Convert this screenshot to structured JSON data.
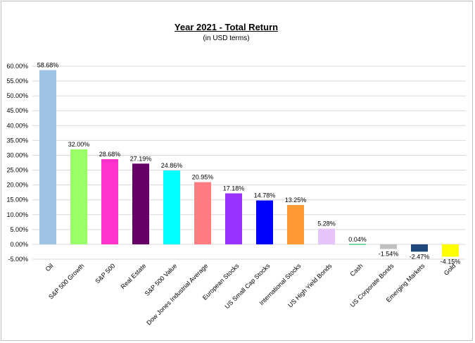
{
  "chart_data": {
    "type": "bar",
    "title": "Year 2021 - Total Return",
    "subtitle": "(in USD terms)",
    "categories": [
      "Oil",
      "S&P 500 Growth",
      "S&P 500",
      "Real Estate",
      "S&P 500 Value",
      "Dow Jones Industrial Average",
      "European Stocks",
      "US Small Cap Stocks",
      "International Stocks",
      "US High Yield Bonds",
      "Cash",
      "US Corporate Bonds",
      "Emerging Markets",
      "Gold"
    ],
    "values": [
      58.68,
      32.0,
      28.68,
      27.19,
      24.86,
      20.95,
      17.18,
      14.78,
      13.25,
      5.28,
      0.04,
      -1.54,
      -2.47,
      -4.15
    ],
    "data_labels": [
      "58.68%",
      "32.00%",
      "28.68%",
      "27.19%",
      "24.86%",
      "20.95%",
      "17.18%",
      "14.78%",
      "13.25%",
      "5.28%",
      "0.04%",
      "-1.54%",
      "-2.47%",
      "-4.15%"
    ],
    "colors": [
      "#9dc3e6",
      "#99ff66",
      "#ff33cc",
      "#660066",
      "#00ffff",
      "#ff7c80",
      "#9933ff",
      "#0000ff",
      "#ff9933",
      "#e6c3f8",
      "#00b050",
      "#bfbfbf",
      "#1f497d",
      "#ffff00"
    ],
    "ylim": [
      -5,
      60
    ],
    "yticks": [
      "60.00%",
      "55.00%",
      "50.00%",
      "45.00%",
      "40.00%",
      "35.00%",
      "30.00%",
      "25.00%",
      "20.00%",
      "15.00%",
      "10.00%",
      "5.00%",
      "0.00%",
      "-5.00%"
    ],
    "ytick_values": [
      60,
      55,
      50,
      45,
      40,
      35,
      30,
      25,
      20,
      15,
      10,
      5,
      0,
      -5
    ],
    "grid": true,
    "legend": "none"
  }
}
